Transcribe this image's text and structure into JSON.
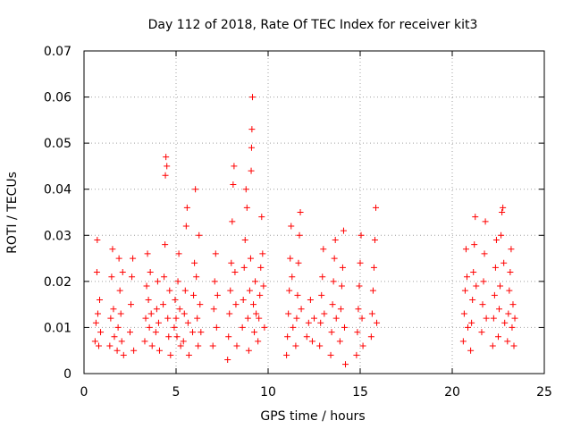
{
  "chart_data": {
    "type": "scatter",
    "title": "Day 112 of 2018, Rate Of TEC Index for receiver kit3",
    "xlabel": "GPS time / hours",
    "ylabel": "ROTI / TECUs",
    "xlim": [
      0,
      25
    ],
    "ylim": [
      0,
      0.07
    ],
    "xticks": [
      "0",
      "5",
      "10",
      "15",
      "20",
      "25"
    ],
    "xtick_values": [
      0,
      5,
      10,
      15,
      20,
      25
    ],
    "yticks": [
      "0",
      "0.01",
      "0.02",
      "0.03",
      "0.04",
      "0.05",
      "0.06",
      "0.07"
    ],
    "ytick_values": [
      0,
      0.01,
      0.02,
      0.03,
      0.04,
      0.05,
      0.06,
      0.07
    ],
    "grid": true,
    "marker": "+",
    "series": [
      {
        "name": "kit3",
        "color": "#ff0000",
        "points": [
          [
            0.6,
            0.007
          ],
          [
            0.65,
            0.011
          ],
          [
            0.7,
            0.022
          ],
          [
            0.72,
            0.029
          ],
          [
            0.75,
            0.013
          ],
          [
            0.8,
            0.006
          ],
          [
            0.85,
            0.016
          ],
          [
            0.9,
            0.009
          ],
          [
            1.4,
            0.006
          ],
          [
            1.45,
            0.012
          ],
          [
            1.5,
            0.021
          ],
          [
            1.55,
            0.027
          ],
          [
            1.6,
            0.014
          ],
          [
            1.65,
            0.008
          ],
          [
            1.8,
            0.005
          ],
          [
            1.85,
            0.01
          ],
          [
            1.9,
            0.025
          ],
          [
            1.95,
            0.018
          ],
          [
            2.0,
            0.013
          ],
          [
            2.05,
            0.007
          ],
          [
            2.1,
            0.022
          ],
          [
            2.15,
            0.004
          ],
          [
            2.5,
            0.009
          ],
          [
            2.55,
            0.015
          ],
          [
            2.6,
            0.021
          ],
          [
            2.65,
            0.025
          ],
          [
            2.7,
            0.005
          ],
          [
            3.3,
            0.007
          ],
          [
            3.35,
            0.012
          ],
          [
            3.4,
            0.019
          ],
          [
            3.45,
            0.026
          ],
          [
            3.5,
            0.016
          ],
          [
            3.55,
            0.01
          ],
          [
            3.6,
            0.022
          ],
          [
            3.65,
            0.013
          ],
          [
            3.7,
            0.006
          ],
          [
            3.9,
            0.009
          ],
          [
            3.95,
            0.014
          ],
          [
            4.0,
            0.02
          ],
          [
            4.05,
            0.011
          ],
          [
            4.1,
            0.005
          ],
          [
            4.3,
            0.015
          ],
          [
            4.35,
            0.021
          ],
          [
            4.4,
            0.028
          ],
          [
            4.42,
            0.043
          ],
          [
            4.45,
            0.047
          ],
          [
            4.5,
            0.045
          ],
          [
            4.55,
            0.012
          ],
          [
            4.6,
            0.008
          ],
          [
            4.65,
            0.018
          ],
          [
            4.7,
            0.004
          ],
          [
            4.9,
            0.01
          ],
          [
            4.95,
            0.016
          ],
          [
            5.0,
            0.012
          ],
          [
            5.05,
            0.008
          ],
          [
            5.1,
            0.02
          ],
          [
            5.15,
            0.026
          ],
          [
            5.2,
            0.014
          ],
          [
            5.25,
            0.006
          ],
          [
            5.4,
            0.007
          ],
          [
            5.45,
            0.013
          ],
          [
            5.5,
            0.018
          ],
          [
            5.55,
            0.032
          ],
          [
            5.6,
            0.036
          ],
          [
            5.65,
            0.011
          ],
          [
            5.7,
            0.004
          ],
          [
            5.9,
            0.009
          ],
          [
            5.95,
            0.017
          ],
          [
            6.0,
            0.024
          ],
          [
            6.05,
            0.04
          ],
          [
            6.1,
            0.021
          ],
          [
            6.15,
            0.012
          ],
          [
            6.2,
            0.006
          ],
          [
            6.25,
            0.03
          ],
          [
            6.3,
            0.015
          ],
          [
            6.35,
            0.009
          ],
          [
            7.0,
            0.006
          ],
          [
            7.05,
            0.014
          ],
          [
            7.1,
            0.02
          ],
          [
            7.15,
            0.026
          ],
          [
            7.2,
            0.01
          ],
          [
            7.25,
            0.017
          ],
          [
            7.8,
            0.003
          ],
          [
            7.85,
            0.008
          ],
          [
            7.9,
            0.013
          ],
          [
            7.95,
            0.018
          ],
          [
            8.0,
            0.024
          ],
          [
            8.05,
            0.033
          ],
          [
            8.1,
            0.041
          ],
          [
            8.15,
            0.045
          ],
          [
            8.2,
            0.022
          ],
          [
            8.25,
            0.015
          ],
          [
            8.3,
            0.006
          ],
          [
            8.6,
            0.01
          ],
          [
            8.65,
            0.016
          ],
          [
            8.7,
            0.023
          ],
          [
            8.75,
            0.029
          ],
          [
            8.8,
            0.04
          ],
          [
            8.85,
            0.036
          ],
          [
            8.9,
            0.012
          ],
          [
            8.95,
            0.005
          ],
          [
            9.0,
            0.018
          ],
          [
            9.05,
            0.025
          ],
          [
            9.08,
            0.044
          ],
          [
            9.1,
            0.049
          ],
          [
            9.12,
            0.053
          ],
          [
            9.15,
            0.06
          ],
          [
            9.2,
            0.015
          ],
          [
            9.25,
            0.009
          ],
          [
            9.3,
            0.02
          ],
          [
            9.35,
            0.013
          ],
          [
            9.45,
            0.007
          ],
          [
            9.5,
            0.012
          ],
          [
            9.55,
            0.017
          ],
          [
            9.6,
            0.023
          ],
          [
            9.65,
            0.034
          ],
          [
            9.7,
            0.026
          ],
          [
            9.75,
            0.019
          ],
          [
            9.8,
            0.01
          ],
          [
            11.0,
            0.004
          ],
          [
            11.05,
            0.008
          ],
          [
            11.1,
            0.013
          ],
          [
            11.15,
            0.018
          ],
          [
            11.2,
            0.025
          ],
          [
            11.25,
            0.032
          ],
          [
            11.3,
            0.021
          ],
          [
            11.35,
            0.01
          ],
          [
            11.5,
            0.006
          ],
          [
            11.55,
            0.012
          ],
          [
            11.6,
            0.017
          ],
          [
            11.65,
            0.024
          ],
          [
            11.7,
            0.03
          ],
          [
            11.75,
            0.035
          ],
          [
            11.8,
            0.014
          ],
          [
            12.1,
            0.008
          ],
          [
            12.2,
            0.011
          ],
          [
            12.3,
            0.016
          ],
          [
            12.4,
            0.007
          ],
          [
            12.5,
            0.012
          ],
          [
            12.8,
            0.006
          ],
          [
            12.85,
            0.011
          ],
          [
            12.9,
            0.017
          ],
          [
            12.95,
            0.021
          ],
          [
            13.0,
            0.027
          ],
          [
            13.05,
            0.013
          ],
          [
            13.4,
            0.004
          ],
          [
            13.45,
            0.009
          ],
          [
            13.5,
            0.015
          ],
          [
            13.55,
            0.02
          ],
          [
            13.6,
            0.025
          ],
          [
            13.65,
            0.029
          ],
          [
            13.7,
            0.012
          ],
          [
            13.9,
            0.007
          ],
          [
            13.95,
            0.014
          ],
          [
            14.0,
            0.019
          ],
          [
            14.05,
            0.023
          ],
          [
            14.1,
            0.031
          ],
          [
            14.15,
            0.01
          ],
          [
            14.2,
            0.002
          ],
          [
            14.8,
            0.004
          ],
          [
            14.85,
            0.009
          ],
          [
            14.9,
            0.014
          ],
          [
            14.95,
            0.019
          ],
          [
            15.0,
            0.024
          ],
          [
            15.05,
            0.03
          ],
          [
            15.1,
            0.012
          ],
          [
            15.15,
            0.006
          ],
          [
            15.6,
            0.008
          ],
          [
            15.65,
            0.013
          ],
          [
            15.7,
            0.018
          ],
          [
            15.75,
            0.023
          ],
          [
            15.8,
            0.029
          ],
          [
            15.85,
            0.036
          ],
          [
            15.9,
            0.011
          ],
          [
            20.6,
            0.007
          ],
          [
            20.65,
            0.013
          ],
          [
            20.7,
            0.018
          ],
          [
            20.75,
            0.027
          ],
          [
            20.8,
            0.021
          ],
          [
            20.85,
            0.01
          ],
          [
            21.0,
            0.005
          ],
          [
            21.05,
            0.011
          ],
          [
            21.1,
            0.016
          ],
          [
            21.15,
            0.022
          ],
          [
            21.2,
            0.028
          ],
          [
            21.25,
            0.034
          ],
          [
            21.3,
            0.019
          ],
          [
            21.6,
            0.009
          ],
          [
            21.65,
            0.015
          ],
          [
            21.7,
            0.02
          ],
          [
            21.75,
            0.026
          ],
          [
            21.8,
            0.033
          ],
          [
            21.85,
            0.012
          ],
          [
            22.2,
            0.006
          ],
          [
            22.25,
            0.012
          ],
          [
            22.3,
            0.017
          ],
          [
            22.35,
            0.023
          ],
          [
            22.4,
            0.029
          ],
          [
            22.5,
            0.008
          ],
          [
            22.55,
            0.014
          ],
          [
            22.6,
            0.019
          ],
          [
            22.65,
            0.03
          ],
          [
            22.7,
            0.035
          ],
          [
            22.75,
            0.036
          ],
          [
            22.8,
            0.024
          ],
          [
            22.85,
            0.011
          ],
          [
            23.0,
            0.007
          ],
          [
            23.05,
            0.013
          ],
          [
            23.1,
            0.018
          ],
          [
            23.15,
            0.022
          ],
          [
            23.2,
            0.027
          ],
          [
            23.25,
            0.01
          ],
          [
            23.3,
            0.015
          ],
          [
            23.35,
            0.006
          ],
          [
            23.4,
            0.012
          ]
        ]
      }
    ]
  }
}
